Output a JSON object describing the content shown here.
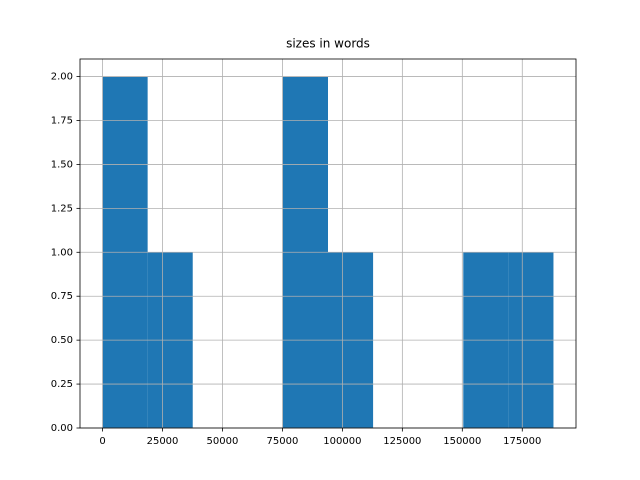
{
  "chart_data": {
    "type": "histogram",
    "title": "sizes in words",
    "bins": [
      0,
      18800,
      37600,
      56400,
      75200,
      94000,
      112800,
      131600,
      150400,
      169200,
      188000
    ],
    "counts": [
      2,
      1,
      0,
      0,
      2,
      1,
      0,
      0,
      1,
      1
    ],
    "color": "#1f77b4",
    "xlim": [
      -9400,
      197400
    ],
    "xticks": [
      0,
      25000,
      50000,
      75000,
      100000,
      125000,
      150000,
      175000
    ],
    "ylim": [
      0,
      2.1
    ],
    "yticks": [
      {
        "value": 0,
        "label": "0.00"
      },
      {
        "value": 0.25,
        "label": "0.25"
      },
      {
        "value": 0.5,
        "label": "0.50"
      },
      {
        "value": 0.75,
        "label": "0.75"
      },
      {
        "value": 1,
        "label": "1.00"
      },
      {
        "value": 1.25,
        "label": "1.25"
      },
      {
        "value": 1.5,
        "label": "1.50"
      },
      {
        "value": 1.75,
        "label": "1.75"
      },
      {
        "value": 2,
        "label": "2.00"
      }
    ],
    "grid": true
  }
}
